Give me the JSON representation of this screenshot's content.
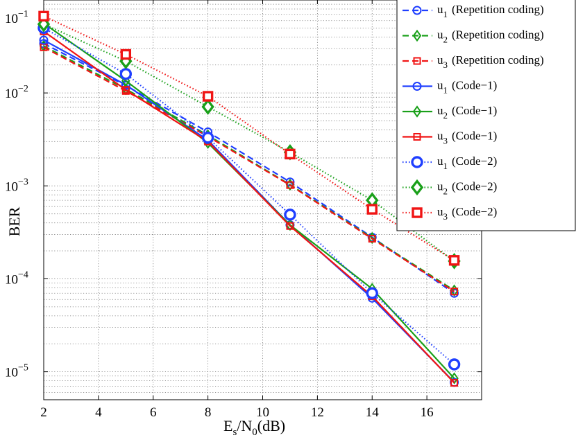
{
  "chart_data": {
    "type": "line",
    "xlabel": {
      "base": "E",
      "sub1": "s",
      "mid": "/N",
      "sub2": "0",
      "tail": "(dB)"
    },
    "ylabel": "BER",
    "xlim": [
      2,
      18
    ],
    "ylim": [
      5e-06,
      0.1
    ],
    "yscale": "log",
    "grid": true,
    "legend_position": "top-right",
    "x_ticks": [
      2,
      4,
      6,
      8,
      10,
      12,
      14,
      16
    ],
    "y_ticks": [
      {
        "value": 1e-05,
        "base": "10",
        "exp": "−5"
      },
      {
        "value": 0.0001,
        "base": "10",
        "exp": "−4"
      },
      {
        "value": 0.001,
        "base": "10",
        "exp": "−3"
      },
      {
        "value": 0.01,
        "base": "10",
        "exp": "−2"
      },
      {
        "value": 0.1,
        "base": "10",
        "exp": "−1"
      }
    ],
    "x": [
      2,
      5,
      8,
      11,
      14,
      17
    ],
    "series": [
      {
        "user": "u",
        "sub": "1",
        "code": "(Repetition coding)",
        "color": "#1f3fff",
        "line": "dashed",
        "marker": "circle",
        "marker_size": "small",
        "values": [
          0.034,
          0.012,
          0.0038,
          0.0011,
          0.00028,
          7e-05
        ]
      },
      {
        "user": "u",
        "sub": "2",
        "code": "(Repetition coding)",
        "color": "#1aa01a",
        "line": "dashed",
        "marker": "diamond",
        "marker_size": "small",
        "values": [
          0.032,
          0.011,
          0.0035,
          0.00103,
          0.000275,
          7.5e-05
        ]
      },
      {
        "user": "u",
        "sub": "3",
        "code": "(Repetition coding)",
        "color": "#f01414",
        "line": "dashed",
        "marker": "square",
        "marker_size": "small",
        "values": [
          0.031,
          0.0105,
          0.0034,
          0.00102,
          0.00027,
          7.3e-05
        ]
      },
      {
        "user": "u",
        "sub": "1",
        "code": "(Code−1)",
        "color": "#1f3fff",
        "line": "solid",
        "marker": "circle",
        "marker_size": "small",
        "values": [
          0.037,
          0.0122,
          0.0031,
          0.00038,
          6.2e-05,
          7.7e-06
        ]
      },
      {
        "user": "u",
        "sub": "2",
        "code": "(Code−1)",
        "color": "#1aa01a",
        "line": "solid",
        "marker": "diamond",
        "marker_size": "small",
        "values": [
          0.056,
          0.0135,
          0.0029,
          0.00038,
          7.8e-05,
          8.5e-06
        ]
      },
      {
        "user": "u",
        "sub": "3",
        "code": "(Code−1)",
        "color": "#f01414",
        "line": "solid",
        "marker": "square",
        "marker_size": "small",
        "values": [
          0.046,
          0.0108,
          0.003,
          0.00037,
          6.5e-05,
          7.6e-06
        ]
      },
      {
        "user": "u",
        "sub": "1",
        "code": "(Code−2)",
        "color": "#1f3fff",
        "line": "dotted",
        "marker": "circle",
        "marker_size": "large",
        "values": [
          0.05,
          0.016,
          0.0033,
          0.00049,
          7e-05,
          1.2e-05
        ]
      },
      {
        "user": "u",
        "sub": "2",
        "code": "(Code−2)",
        "color": "#1aa01a",
        "line": "dotted",
        "marker": "diamond",
        "marker_size": "large",
        "values": [
          0.055,
          0.022,
          0.0071,
          0.0023,
          0.0007,
          0.000155
        ]
      },
      {
        "user": "u",
        "sub": "3",
        "code": "(Code−2)",
        "color": "#f01414",
        "line": "dotted",
        "marker": "square",
        "marker_size": "large",
        "values": [
          0.067,
          0.026,
          0.0092,
          0.0022,
          0.00056,
          0.000158
        ]
      }
    ]
  }
}
